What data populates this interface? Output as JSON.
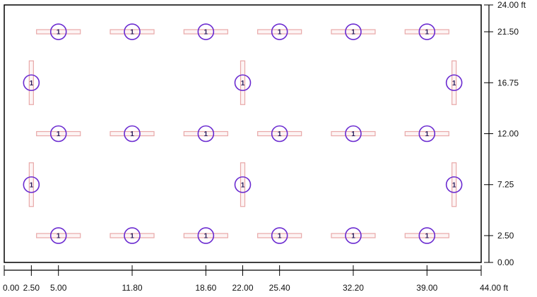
{
  "room": {
    "width_ft": 44.0,
    "depth_ft": 24.0
  },
  "x_axis": {
    "ticks": [
      {
        "value": 0.0,
        "label": "0.00"
      },
      {
        "value": 2.5,
        "label": "2.50"
      },
      {
        "value": 5.0,
        "label": "5.00"
      },
      {
        "value": 11.8,
        "label": "11.80"
      },
      {
        "value": 18.6,
        "label": "18.60"
      },
      {
        "value": 22.0,
        "label": "22.00"
      },
      {
        "value": 25.4,
        "label": "25.40"
      },
      {
        "value": 32.2,
        "label": "32.20"
      },
      {
        "value": 39.0,
        "label": "39.00"
      },
      {
        "value": 44.0,
        "label": "44.00 ft"
      }
    ]
  },
  "y_axis": {
    "ticks": [
      {
        "value": 0.0,
        "label": "0.00"
      },
      {
        "value": 2.5,
        "label": "2.50"
      },
      {
        "value": 7.25,
        "label": "7.25"
      },
      {
        "value": 12.0,
        "label": "12.00"
      },
      {
        "value": 16.75,
        "label": "16.75"
      },
      {
        "value": 21.5,
        "label": "21.50"
      },
      {
        "value": 24.0,
        "label": "24.00 ft"
      }
    ]
  },
  "fixtures": [
    {
      "x": 5.0,
      "y": 21.5,
      "orientation": "horizontal",
      "label": "1"
    },
    {
      "x": 11.8,
      "y": 21.5,
      "orientation": "horizontal",
      "label": "1"
    },
    {
      "x": 18.6,
      "y": 21.5,
      "orientation": "horizontal",
      "label": "1"
    },
    {
      "x": 25.4,
      "y": 21.5,
      "orientation": "horizontal",
      "label": "1"
    },
    {
      "x": 32.2,
      "y": 21.5,
      "orientation": "horizontal",
      "label": "1"
    },
    {
      "x": 39.0,
      "y": 21.5,
      "orientation": "horizontal",
      "label": "1"
    },
    {
      "x": 2.5,
      "y": 16.75,
      "orientation": "vertical",
      "label": "1"
    },
    {
      "x": 22.0,
      "y": 16.75,
      "orientation": "vertical",
      "label": "1"
    },
    {
      "x": 41.5,
      "y": 16.75,
      "orientation": "vertical",
      "label": "1"
    },
    {
      "x": 5.0,
      "y": 12.0,
      "orientation": "horizontal",
      "label": "1"
    },
    {
      "x": 11.8,
      "y": 12.0,
      "orientation": "horizontal",
      "label": "1"
    },
    {
      "x": 18.6,
      "y": 12.0,
      "orientation": "horizontal",
      "label": "1"
    },
    {
      "x": 25.4,
      "y": 12.0,
      "orientation": "horizontal",
      "label": "1"
    },
    {
      "x": 32.2,
      "y": 12.0,
      "orientation": "horizontal",
      "label": "1"
    },
    {
      "x": 39.0,
      "y": 12.0,
      "orientation": "horizontal",
      "label": "1"
    },
    {
      "x": 2.5,
      "y": 7.25,
      "orientation": "vertical",
      "label": "1"
    },
    {
      "x": 22.0,
      "y": 7.25,
      "orientation": "vertical",
      "label": "1"
    },
    {
      "x": 41.5,
      "y": 7.25,
      "orientation": "vertical",
      "label": "1"
    },
    {
      "x": 5.0,
      "y": 2.5,
      "orientation": "horizontal",
      "label": "1"
    },
    {
      "x": 11.8,
      "y": 2.5,
      "orientation": "horizontal",
      "label": "1"
    },
    {
      "x": 18.6,
      "y": 2.5,
      "orientation": "horizontal",
      "label": "1"
    },
    {
      "x": 25.4,
      "y": 2.5,
      "orientation": "horizontal",
      "label": "1"
    },
    {
      "x": 32.2,
      "y": 2.5,
      "orientation": "horizontal",
      "label": "1"
    },
    {
      "x": 39.0,
      "y": 2.5,
      "orientation": "horizontal",
      "label": "1"
    }
  ],
  "colors": {
    "outline": "#000000",
    "fixture_body": "#e8a8a8",
    "fixture_body_fill": "#fdf4f4",
    "fixture_circle": "#6a2ad0"
  }
}
